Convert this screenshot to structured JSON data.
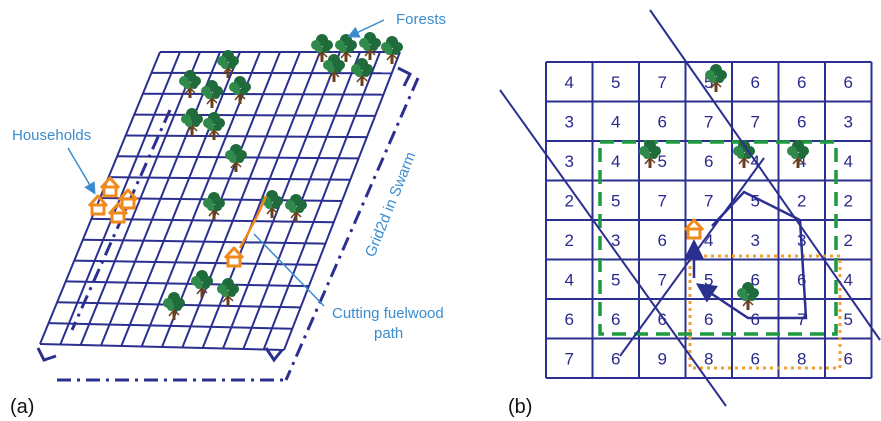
{
  "colors": {
    "grid": "#2b2f8f",
    "callout": "#3a8ccf",
    "house": "#f08a1c",
    "tree_foliage": "#1f6b3b",
    "tree_trunk": "#6a3f1e",
    "dash_green": "#1e9a3f",
    "dot_orange": "#f0a030"
  },
  "panel_a": {
    "label": "(a)",
    "forests_label": "Forests",
    "households_label": "Households",
    "grid_label": "Grid2d in Swarm",
    "path_label_line1": "Cutting fuelwood",
    "path_label_line2": "path"
  },
  "panel_b": {
    "label": "(b)",
    "cells": [
      [
        "4",
        "5",
        "7",
        "5",
        "6",
        "6",
        "6"
      ],
      [
        "3",
        "4",
        "6",
        "7",
        "7",
        "6",
        "3"
      ],
      [
        "3",
        "4",
        "5",
        "6",
        "4",
        "4",
        "4"
      ],
      [
        "2",
        "5",
        "7",
        "7",
        "5",
        "2",
        "2"
      ],
      [
        "2",
        "3",
        "6",
        "4",
        "3",
        "3",
        "2"
      ],
      [
        "4",
        "5",
        "7",
        "5",
        "6",
        "6",
        "4"
      ],
      [
        "6",
        "6",
        "6",
        "6",
        "6",
        "7",
        "5"
      ],
      [
        "7",
        "6",
        "9",
        "8",
        "6",
        "8",
        "6"
      ]
    ]
  }
}
